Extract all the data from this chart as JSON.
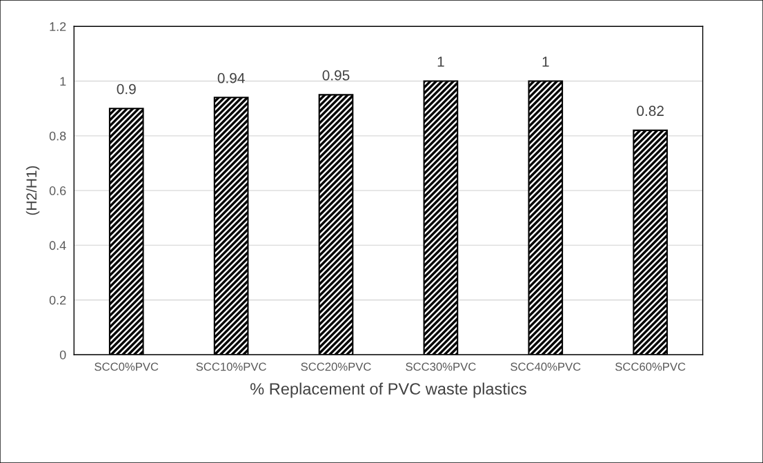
{
  "chart_data": {
    "type": "bar",
    "xlabel": "% Replacement of PVC waste plastics",
    "ylabel": "(H2/H1)",
    "categories": [
      "SCC0%PVC",
      "SCC10%PVC",
      "SCC20%PVC",
      "SCC30%PVC",
      "SCC40%PVC",
      "SCC60%PVC"
    ],
    "values": [
      0.9,
      0.94,
      0.95,
      1,
      1,
      0.82
    ],
    "color": "#000000",
    "ylim": [
      0,
      1.2
    ],
    "yticks": [
      {
        "value": 0,
        "label": "0"
      },
      0.2,
      0.4,
      0.6,
      0.8,
      {
        "value": 1,
        "label": "1"
      },
      1.2
    ],
    "grid": "y",
    "data_labels": true
  }
}
